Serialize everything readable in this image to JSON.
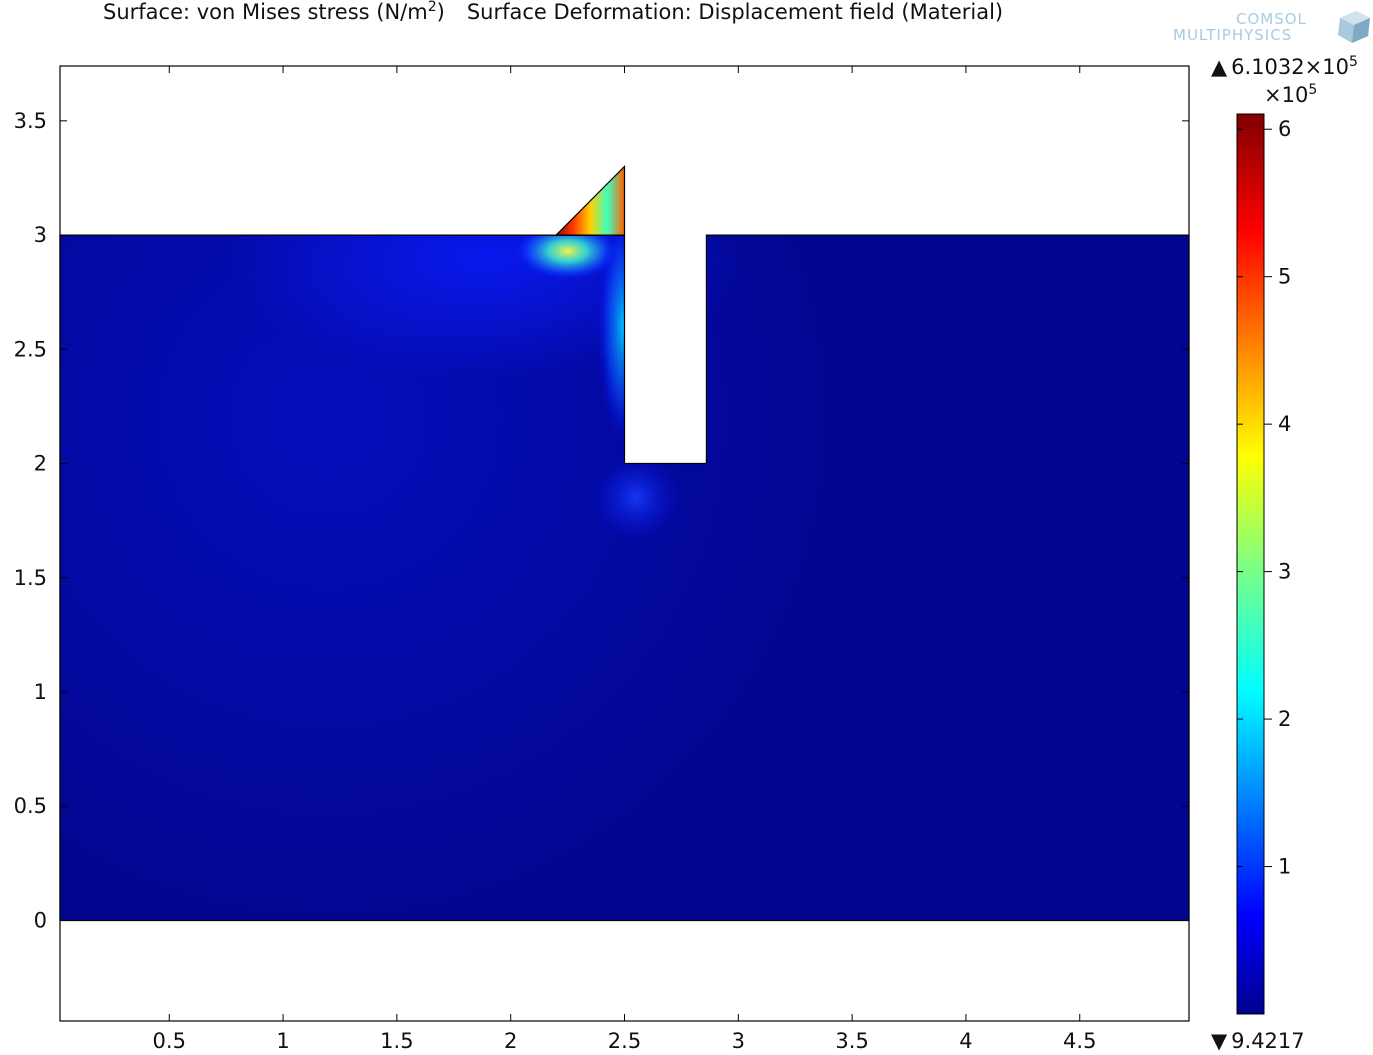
{
  "title": {
    "part1_prefix": "Surface: von Mises stress (N/m",
    "part1_sup": "2",
    "part1_suffix": ")",
    "part2": "Surface Deformation: Displacement field (Material)"
  },
  "logo": {
    "line1": "COMSOL",
    "line2": "MULTIPHYSICS",
    "icon": "comsol-cube-icon"
  },
  "chart_data": {
    "type": "heatmap",
    "title": "Surface: von Mises stress (N/m^2)   Surface Deformation: Displacement field (Material)",
    "xlabel": "",
    "ylabel": "",
    "xlim": [
      0.02,
      4.98
    ],
    "ylim": [
      -0.44,
      3.74
    ],
    "x_ticks": [
      0.5,
      1,
      1.5,
      2,
      2.5,
      3,
      3.5,
      4,
      4.5
    ],
    "x_tick_labels": [
      "0.5",
      "1",
      "1.5",
      "2",
      "2.5",
      "3",
      "3.5",
      "4",
      "4.5"
    ],
    "y_ticks": [
      0,
      0.5,
      1,
      1.5,
      2,
      2.5,
      3,
      3.5
    ],
    "y_tick_labels": [
      "0",
      "0.5",
      "1",
      "1.5",
      "2",
      "2.5",
      "3",
      "3.5"
    ],
    "geometry": {
      "domain": [
        [
          0.02,
          0
        ],
        [
          4.98,
          0
        ],
        [
          4.98,
          3
        ],
        [
          2.86,
          3
        ],
        [
          2.86,
          2
        ],
        [
          2.5,
          2
        ],
        [
          2.5,
          3
        ],
        [
          0.02,
          3
        ]
      ],
      "notch": {
        "x": [
          2.5,
          2.86
        ],
        "y": [
          2,
          3
        ]
      },
      "deformed_tip": [
        [
          2.2,
          3
        ],
        [
          2.5,
          3.3
        ],
        [
          2.5,
          3
        ]
      ]
    },
    "hotspots": [
      {
        "x": 2.35,
        "y": 3.1,
        "value": 500000
      },
      {
        "x": 2.25,
        "y": 2.93,
        "value": 350000
      },
      {
        "x": 2.5,
        "y": 2.6,
        "value": 200000
      },
      {
        "x": 2.55,
        "y": 1.85,
        "value": 100000
      }
    ],
    "colorbar": {
      "colormap": "jet",
      "max_label": "6.1032×10",
      "max_label_exp": "5",
      "min_label": "9.4217",
      "multiplier": "×10",
      "multiplier_exp": "5",
      "ticks": [
        1,
        2,
        3,
        4,
        5,
        6
      ],
      "tick_labels": [
        "1",
        "2",
        "3",
        "4",
        "5",
        "6"
      ],
      "range": [
        9.4217e-05,
        6.1032
      ]
    }
  }
}
